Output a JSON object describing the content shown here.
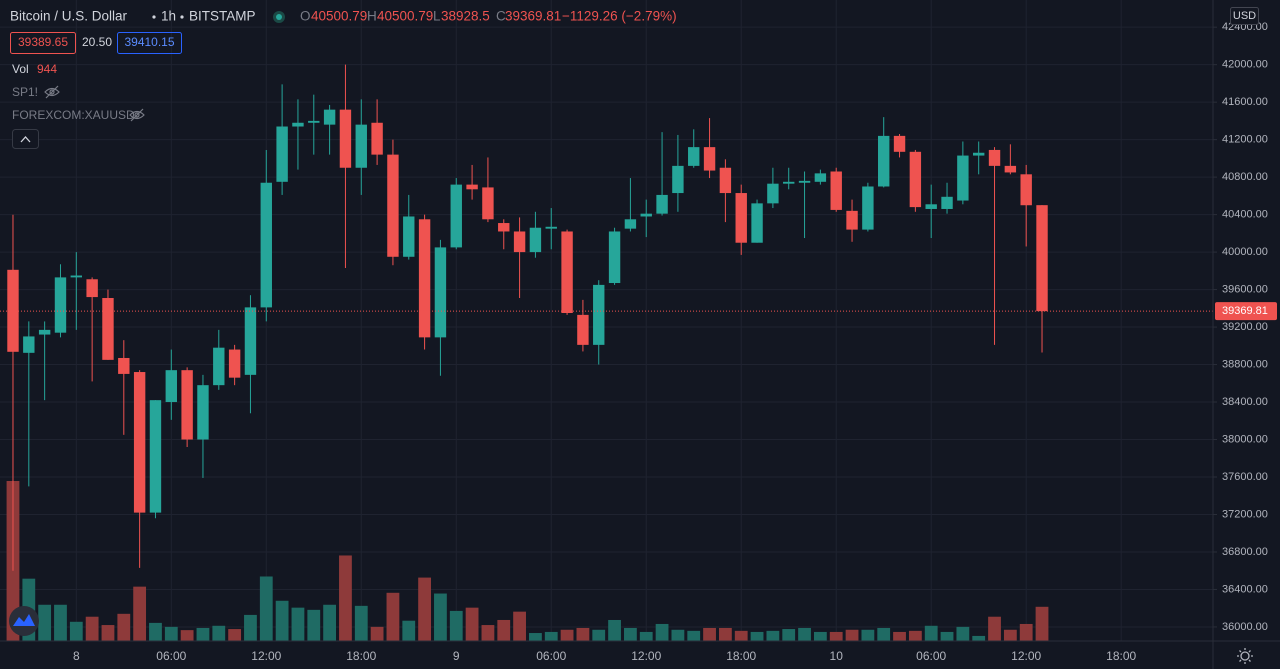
{
  "chart_data": {
    "type": "candlestick",
    "symbol": "Bitcoin / U.S. Dollar",
    "interval": "1h",
    "exchange": "BITSTAMP",
    "ohlc_labels": [
      "O",
      "H",
      "L",
      "C"
    ],
    "change": "−1129.26 (−2.79%)",
    "bid": "39389.65",
    "spread": "20.50",
    "ask": "39410.15",
    "volume_label": "Vol",
    "indicators": [
      "SP1!",
      "FOREXCOM:XAUUSD"
    ],
    "currency": "USD",
    "up_color": "#26a69a",
    "down_color": "#ef5350",
    "volume_up_color": "#1f6b64",
    "volume_down_color": "#8e3a3a",
    "grid": true,
    "xlim": [
      -0.82,
      75.8
    ],
    "xticks": [
      {
        "value": 4,
        "label": "8"
      },
      {
        "value": 10,
        "label": "06:00"
      },
      {
        "value": 16,
        "label": "12:00"
      },
      {
        "value": 22,
        "label": "18:00"
      },
      {
        "value": 28,
        "label": "9"
      },
      {
        "value": 34,
        "label": "06:00"
      },
      {
        "value": 40,
        "label": "12:00"
      },
      {
        "value": 46,
        "label": "18:00"
      },
      {
        "value": 52,
        "label": "10"
      },
      {
        "value": 58,
        "label": "06:00"
      },
      {
        "value": 64,
        "label": "12:00"
      },
      {
        "value": 70,
        "label": "18:00"
      }
    ],
    "ylim": [
      35850,
      42690
    ],
    "yticks": [
      {
        "value": 36000,
        "label": "36000.00"
      },
      {
        "value": 36400,
        "label": "36400.00"
      },
      {
        "value": 36800,
        "label": "36800.00"
      },
      {
        "value": 37200,
        "label": "37200.00"
      },
      {
        "value": 37600,
        "label": "37600.00"
      },
      {
        "value": 38000,
        "label": "38000.00"
      },
      {
        "value": 38400,
        "label": "38400.00"
      },
      {
        "value": 38800,
        "label": "38800.00"
      },
      {
        "value": 39200,
        "label": "39200.00"
      },
      {
        "value": 39600,
        "label": "39600.00"
      },
      {
        "value": 40000,
        "label": "40000.00"
      },
      {
        "value": 40400,
        "label": "40400.00"
      },
      {
        "value": 40800,
        "label": "40800.00"
      },
      {
        "value": 41200,
        "label": "41200.00"
      },
      {
        "value": 41600,
        "label": "41600.00"
      },
      {
        "value": 42000,
        "label": "42000.00"
      },
      {
        "value": 42400,
        "label": "42400.00"
      }
    ],
    "open": [
      39811,
      38925,
      39120,
      39140,
      39730,
      39710,
      39510,
      38870,
      38720,
      37220,
      38400,
      38740,
      38000,
      38580,
      38960,
      38690,
      39410,
      40750,
      41340,
      41380,
      41360,
      41520,
      40900,
      41380,
      41040,
      39950,
      40350,
      39090,
      40050,
      40720,
      40690,
      40310,
      40220,
      40000,
      40250,
      40220,
      39330,
      39010,
      39670,
      40250,
      40380,
      40410,
      40630,
      40920,
      41120,
      40900,
      40630,
      40100,
      40520,
      40730,
      40740,
      40750,
      40860,
      40440,
      40240,
      40700,
      41240,
      41070,
      40460,
      40460,
      40550,
      41030,
      41090,
      40920,
      40830,
      40500.79
    ],
    "high": [
      40399,
      39260,
      39260,
      39870,
      40000,
      39730,
      39600,
      39060,
      38740,
      38420,
      38960,
      38770,
      38690,
      39170,
      39010,
      39540,
      41090,
      41790,
      41630,
      41680,
      41570,
      42000,
      41630,
      41630,
      41200,
      40610,
      40400,
      40130,
      40790,
      40930,
      41010,
      40350,
      40370,
      40430,
      40470,
      40240,
      39490,
      39700,
      40260,
      40790,
      40560,
      41280,
      41250,
      41310,
      41430,
      40990,
      40720,
      40560,
      40900,
      40900,
      40860,
      40880,
      40900,
      40560,
      40740,
      41440,
      41260,
      41090,
      40720,
      40740,
      41180,
      41180,
      41120,
      41150,
      40930,
      40500.79
    ],
    "low": [
      36600,
      37500,
      38420,
      39090,
      39170,
      38620,
      38850,
      38050,
      36630,
      37160,
      38210,
      37920,
      37590,
      38530,
      38580,
      38280,
      39260,
      40610,
      40880,
      41040,
      41040,
      39830,
      40610,
      40930,
      39860,
      39920,
      38960,
      38680,
      40030,
      40560,
      40320,
      40030,
      39510,
      39940,
      40030,
      39330,
      38940,
      38800,
      39650,
      40220,
      40160,
      40390,
      40430,
      40900,
      40790,
      40320,
      39970,
      40100,
      40470,
      40670,
      40150,
      40720,
      40430,
      40110,
      40220,
      40690,
      41010,
      40430,
      40150,
      40410,
      40510,
      40830,
      39010,
      40830,
      40060,
      38928.5
    ],
    "close": [
      38936,
      39100,
      39170,
      39730,
      39750,
      39520,
      38850,
      38700,
      37220,
      38420,
      38740,
      38000,
      38580,
      38980,
      38660,
      39410,
      40740,
      41340,
      41380,
      41400,
      41520,
      40900,
      41360,
      41040,
      39950,
      40380,
      39090,
      40050,
      40720,
      40670,
      40350,
      40220,
      40000,
      40260,
      40270,
      39350,
      39010,
      39650,
      40220,
      40350,
      40410,
      40610,
      40920,
      41120,
      40870,
      40630,
      40100,
      40520,
      40730,
      40750,
      40760,
      40840,
      40450,
      40240,
      40700,
      41240,
      41070,
      40480,
      40510,
      40590,
      41030,
      41060,
      40920,
      40850,
      40500,
      39369.81
    ],
    "volume": [
      4415,
      1720,
      1000,
      1000,
      530,
      670,
      440,
      750,
      1500,
      500,
      390,
      300,
      360,
      420,
      330,
      720,
      1780,
      1110,
      920,
      860,
      1000,
      2360,
      970,
      390,
      1330,
      560,
      1750,
      1310,
      830,
      920,
      440,
      580,
      810,
      220,
      250,
      310,
      360,
      310,
      580,
      360,
      250,
      470,
      310,
      280,
      360,
      360,
      280,
      250,
      280,
      330,
      360,
      250,
      250,
      310,
      310,
      360,
      250,
      280,
      420,
      250,
      390,
      140,
      670,
      310,
      470,
      944
    ]
  }
}
